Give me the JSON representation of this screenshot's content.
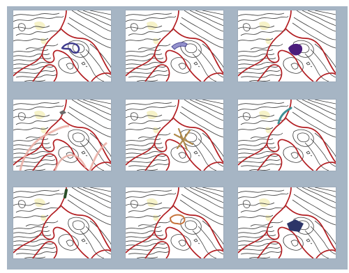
{
  "caption": "",
  "grid": {
    "columns": 3,
    "rows": 3,
    "panels": [
      {
        "name": "panel-route-blue-outline",
        "highlight": "blue-outline"
      },
      {
        "name": "panel-route-blue-band",
        "highlight": "blue-band"
      },
      {
        "name": "panel-area-purple",
        "highlight": "purple-fill"
      },
      {
        "name": "panel-buffer-pink",
        "highlight": "pink-buffer"
      },
      {
        "name": "panel-cross-brown",
        "highlight": "brown-cross"
      },
      {
        "name": "panel-trail-teal",
        "highlight": "teal-line"
      },
      {
        "name": "panel-trail-green",
        "highlight": "green-line"
      },
      {
        "name": "panel-loop-orange",
        "highlight": "orange-loop"
      },
      {
        "name": "panel-area-navy",
        "highlight": "navy-fill"
      }
    ]
  },
  "colors": {
    "frame": "#a6b5c4",
    "boundary": "#b21e22",
    "contour": "#3a3a3a",
    "blue": "#3d3a8c",
    "purple": "#4b1c7c",
    "pink": "#eab0a6",
    "brown": "#b08a4a",
    "teal": "#3f8f95",
    "green": "#2b4f2a",
    "orange": "#c6733b",
    "navy": "#2d3568"
  }
}
